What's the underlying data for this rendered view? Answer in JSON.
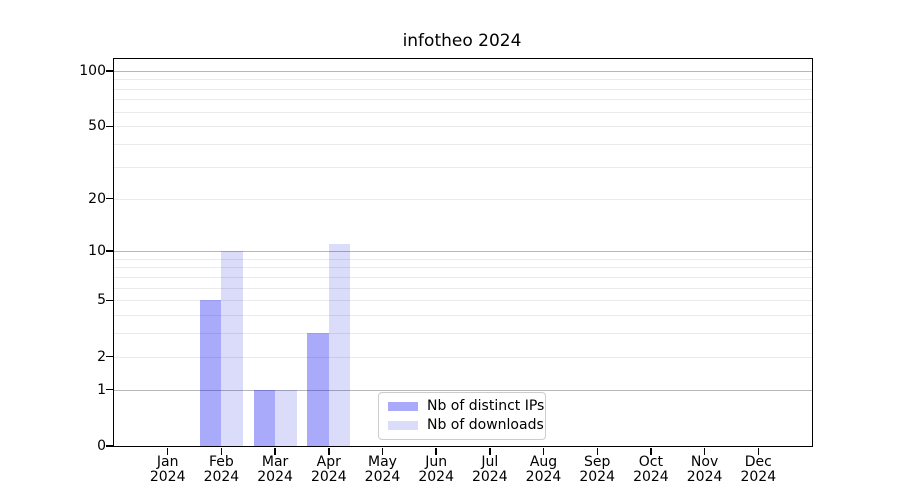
{
  "chart_data": {
    "type": "bar",
    "title": "infotheo 2024",
    "x_months": [
      "Jan",
      "Feb",
      "Mar",
      "Apr",
      "May",
      "Jun",
      "Jul",
      "Aug",
      "Sep",
      "Oct",
      "Nov",
      "Dec"
    ],
    "x_year": "2024",
    "series": [
      {
        "name": "Nb of distinct IPs",
        "color": "rgba(12,12,241,0.35)",
        "values": [
          0,
          5,
          1,
          3,
          0,
          0,
          0,
          0,
          0,
          0,
          0,
          0
        ]
      },
      {
        "name": "Nb of downloads",
        "color": "rgba(15,15,222,0.15)",
        "values": [
          0,
          10,
          1,
          11,
          0,
          0,
          0,
          0,
          0,
          0,
          0,
          0
        ]
      }
    ],
    "yscale": "log1p",
    "ylim": [
      0,
      113
    ],
    "ytick_values": [
      100,
      50,
      20,
      10,
      5,
      2,
      1,
      0
    ],
    "ytick_labels": [
      "100",
      "50",
      "20",
      "10",
      "5",
      "2",
      "1",
      "0"
    ],
    "grid_major_values": [
      1,
      10,
      100
    ],
    "grid_minor_values": [
      2,
      3,
      4,
      5,
      6,
      7,
      8,
      9,
      20,
      30,
      40,
      50,
      60,
      70,
      80,
      90
    ],
    "grid": true,
    "legend_position": "lower center",
    "colors": {
      "grid_major": "#b7b7b7",
      "grid_minor": "#eaeaea",
      "spine": "#000000",
      "text": "#000000",
      "legend_border": "#cccccc"
    }
  }
}
